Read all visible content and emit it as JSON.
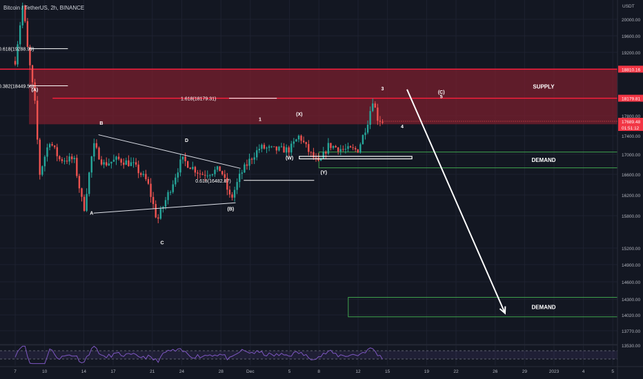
{
  "header": {
    "title": "Bitcoin / TetherUS, 2h, BINANCE"
  },
  "colors": {
    "background": "#131722",
    "up": "#26a69a",
    "down": "#ef5350",
    "supply_fill": "#7a1f2e",
    "resistance_line": "#ff1f3d",
    "demand": "#3fa34d",
    "arrow": "#ffffff",
    "rsi": "#7e57c2"
  },
  "chart_data": {
    "type": "candlestick",
    "title": "Bitcoin / TetherUS, 2h, BINANCE",
    "y_axis": {
      "unit": "USDT",
      "ylim": [
        13400,
        20600
      ],
      "ticks": [
        "20000.00",
        "19600.00",
        "19200.00",
        "18800.00",
        "17800.00",
        "17400.00",
        "17000.00",
        "16600.00",
        "16200.00",
        "15800.00",
        "15200.00",
        "14900.00",
        "14600.00",
        "14300.00",
        "14020.00",
        "13770.00",
        "13530.00"
      ],
      "tick_values": [
        20000,
        19600,
        19200,
        18800,
        17800,
        17400,
        17000,
        16600,
        16200,
        15800,
        15200,
        14900,
        14600,
        14300,
        14020,
        13770,
        13530
      ]
    },
    "x_axis": {
      "ticks": [
        "7",
        "10",
        "14",
        "17",
        "21",
        "24",
        "28",
        "Dec",
        "5",
        "8",
        "12",
        "15",
        "19",
        "22",
        "26",
        "29",
        "2023",
        "4",
        "5"
      ],
      "tick_day_index": [
        0,
        3,
        7,
        10,
        14,
        17,
        21,
        24,
        28,
        31,
        35,
        38,
        42,
        45,
        49,
        52,
        55,
        58,
        61
      ]
    },
    "price_labels": [
      {
        "text": "18810.16",
        "value": 18810.16,
        "style": "red"
      },
      {
        "text": "18179.81",
        "value": 18179.81,
        "style": "red"
      },
      {
        "text": "17689.48",
        "value": 17689.48,
        "style": "red"
      },
      {
        "text": "01:51:12",
        "value": 17610,
        "style": "red"
      }
    ],
    "key_points": [
      [
        0,
        19000
      ],
      [
        0.8,
        20400
      ],
      [
        1.3,
        19200
      ],
      [
        2.0,
        18100
      ],
      [
        2.5,
        16600
      ],
      [
        3.5,
        17300
      ],
      [
        4.5,
        16900
      ],
      [
        6.0,
        16900
      ],
      [
        7.0,
        15900
      ],
      [
        8.0,
        17200
      ],
      [
        9.0,
        16800
      ],
      [
        10.5,
        16900
      ],
      [
        12.0,
        16800
      ],
      [
        13.5,
        16450
      ],
      [
        14.5,
        15700
      ],
      [
        16.0,
        16400
      ],
      [
        17.0,
        16900
      ],
      [
        19.0,
        16600
      ],
      [
        21.0,
        16700
      ],
      [
        22.0,
        16100
      ],
      [
        23.0,
        16600
      ],
      [
        24.0,
        16900
      ],
      [
        25.0,
        17150
      ],
      [
        26.5,
        17100
      ],
      [
        28.0,
        17100
      ],
      [
        29.0,
        17400
      ],
      [
        30.0,
        17050
      ],
      [
        31.0,
        16800
      ],
      [
        32.0,
        17200
      ],
      [
        33.5,
        17100
      ],
      [
        35.0,
        17100
      ],
      [
        36.0,
        17700
      ],
      [
        36.5,
        18150
      ],
      [
        37.0,
        17750
      ],
      [
        37.5,
        17689.48
      ]
    ],
    "candle_count": 150,
    "supply_zone": {
      "label": "SUPPLY",
      "from": 17630,
      "to": 18810.16
    },
    "demand_zones": [
      {
        "label": "DEMAND",
        "from": 16730,
        "to": 17050,
        "x_start": 31.0
      },
      {
        "label": "DEMAND",
        "from": 13990,
        "to": 14330,
        "x_start": 34.0
      }
    ],
    "horizontal_lines": [
      {
        "value": 18810.16,
        "style": "red"
      },
      {
        "value": 18179.81,
        "style": "red",
        "x_start": 1.0
      }
    ],
    "fib_levels": [
      {
        "text": "0.618(19288.99)",
        "value": 19288.99,
        "x_end": 2.0
      },
      {
        "text": "0.382(18449.56)",
        "value": 18449.56,
        "x_end": 2.0
      },
      {
        "text": "1.618(18179.31)",
        "value": 18179.31,
        "x_start": 20.0,
        "x_end": 26.0
      },
      {
        "text": "0.618(16482.87)",
        "value": 16482.87,
        "x_start": 21.5,
        "x_end": 27.0
      }
    ],
    "wave_labels": [
      {
        "text": "(A)",
        "x": 2.0,
        "y": 18330
      },
      {
        "text": "B",
        "x": 8.8,
        "y": 17620
      },
      {
        "text": "A",
        "x": 7.8,
        "y": 15820
      },
      {
        "text": "C",
        "x": 15.0,
        "y": 15270
      },
      {
        "text": "D",
        "x": 17.5,
        "y": 17270
      },
      {
        "text": "(B)",
        "x": 22.0,
        "y": 15900
      },
      {
        "text": "1",
        "x": 25.0,
        "y": 17700
      },
      {
        "text": "(X)",
        "x": 29.0,
        "y": 17800
      },
      {
        "text": "(W)",
        "x": 28.0,
        "y": 16900
      },
      {
        "text": "(Y)",
        "x": 31.5,
        "y": 16610
      },
      {
        "text": "3",
        "x": 37.5,
        "y": 18350
      },
      {
        "text": "4",
        "x": 39.5,
        "y": 17550
      },
      {
        "text": "(C)",
        "x": 43.5,
        "y": 18280
      },
      {
        "text": "5",
        "x": 43.5,
        "y": 18180
      }
    ],
    "triangle": [
      [
        8.5,
        17420
      ],
      [
        23.0,
        16720
      ],
      [
        22.5,
        16050
      ],
      [
        8.0,
        15850
      ]
    ],
    "wy_box": {
      "x1": 29.0,
      "x2": 40.5,
      "y1": 16960,
      "y2": 16910
    },
    "projection_arrow": {
      "from": [
        40.0,
        18370
      ],
      "to": [
        50.0,
        14050
      ]
    },
    "rsi_panel": {
      "ylim": [
        0,
        100
      ],
      "levels": [
        70,
        30
      ]
    }
  }
}
